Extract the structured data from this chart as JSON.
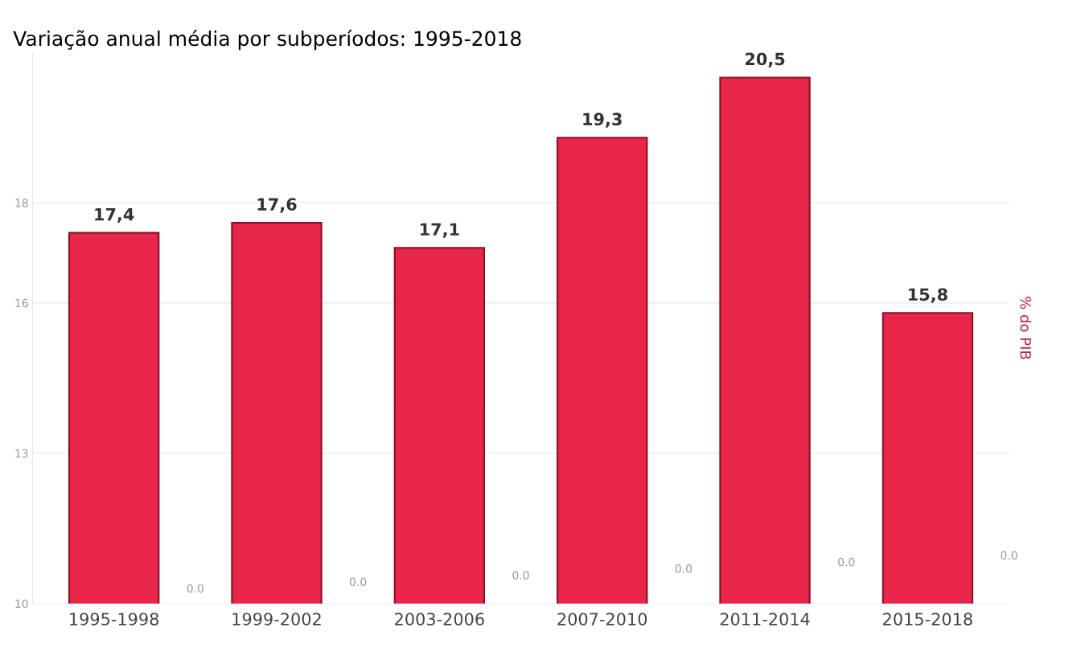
{
  "chart_data": {
    "type": "bar",
    "title": "Variação anual média por subperíodos: 1995-2018",
    "ylabel": "% do PIB",
    "categories": [
      "1995-1998",
      "1999-2002",
      "2003-2006",
      "2007-2010",
      "2011-2014",
      "2015-2018"
    ],
    "values": [
      17.4,
      17.6,
      17.1,
      19.3,
      20.5,
      15.8
    ],
    "value_labels": [
      "17,4",
      "17,6",
      "17,1",
      "19,3",
      "20,5",
      "15,8"
    ],
    "color": "#e8264a",
    "ylim": [
      10,
      21
    ],
    "yticks": [
      10,
      13,
      16,
      18
    ],
    "grid": "y",
    "annotations": [
      "0.0",
      "0.0",
      "0.0",
      "0.0",
      "0.0",
      "0.0"
    ]
  }
}
